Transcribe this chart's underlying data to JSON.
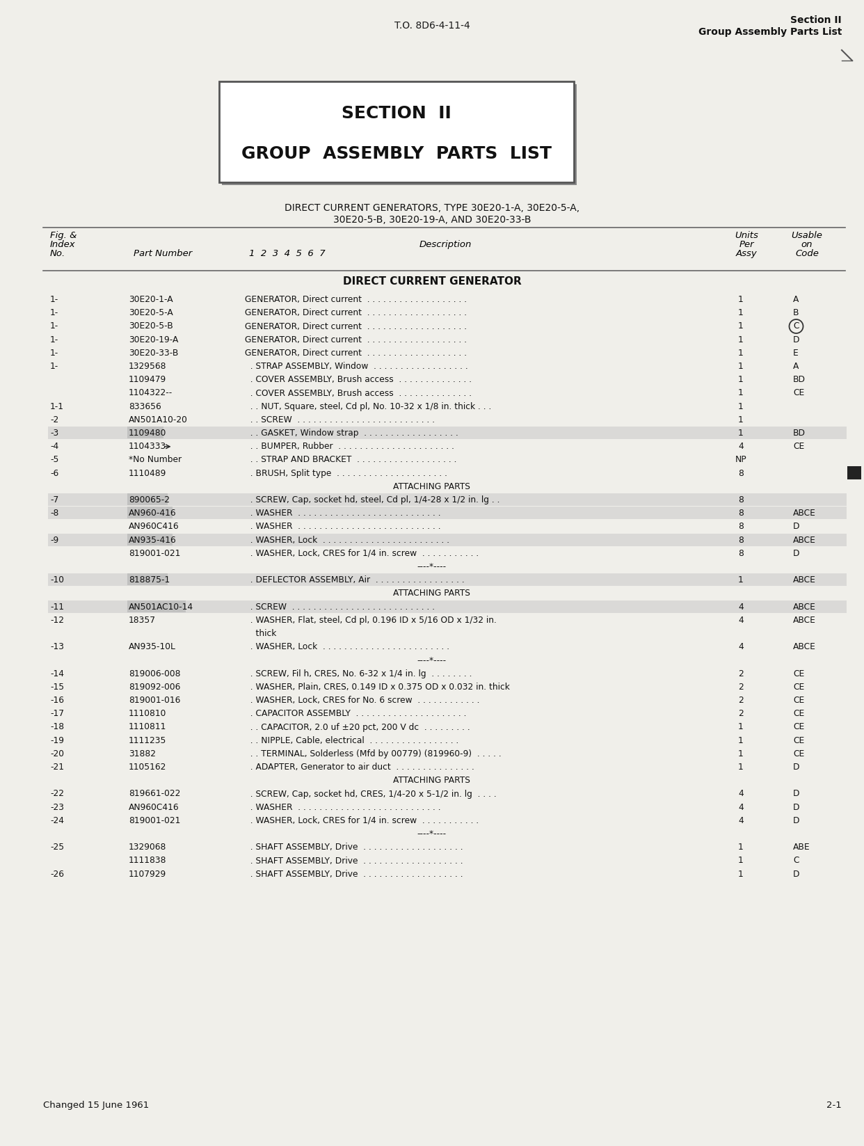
{
  "page_bg": "#f0efea",
  "header_left": "T.O. 8D6-4-11-4",
  "header_right_line1": "Section II",
  "header_right_line2": "Group Assembly Parts List",
  "section_title_line1": "SECTION  II",
  "section_title_line2": "GROUP  ASSEMBLY  PARTS  LIST",
  "subtitle_line1": "DIRECT CURRENT GENERATORS, TYPE 30E20-1-A, 30E20-5-A,",
  "subtitle_line2": "30E20-5-B, 30E20-19-A, AND 30E20-33-B",
  "section_header": "DIRECT CURRENT GENERATOR",
  "rows": [
    {
      "fig": "1-",
      "part": "30E20-1-A",
      "desc": "GENERATOR, Direct current  . . . . . . . . . . . . . . . . . . .",
      "qty": "1",
      "code": "A",
      "circled": false,
      "highlight": false
    },
    {
      "fig": "1-",
      "part": "30E20-5-A",
      "desc": "GENERATOR, Direct current  . . . . . . . . . . . . . . . . . . .",
      "qty": "1",
      "code": "B",
      "circled": false,
      "highlight": false
    },
    {
      "fig": "1-",
      "part": "30E20-5-B",
      "desc": "GENERATOR, Direct current  . . . . . . . . . . . . . . . . . . .",
      "qty": "1",
      "code": "C",
      "circled": true,
      "highlight": false
    },
    {
      "fig": "1-",
      "part": "30E20-19-A",
      "desc": "GENERATOR, Direct current  . . . . . . . . . . . . . . . . . . .",
      "qty": "1",
      "code": "D",
      "circled": false,
      "highlight": false
    },
    {
      "fig": "1-",
      "part": "30E20-33-B",
      "desc": "GENERATOR, Direct current  . . . . . . . . . . . . . . . . . . .",
      "qty": "1",
      "code": "E",
      "circled": false,
      "highlight": false
    },
    {
      "fig": "1-",
      "part": "1329568",
      "desc": "  . STRAP ASSEMBLY, Window  . . . . . . . . . . . . . . . . . .",
      "qty": "1",
      "code": "A",
      "circled": false,
      "highlight": false
    },
    {
      "fig": "",
      "part": "1109479",
      "desc": "  . COVER ASSEMBLY, Brush access  . . . . . . . . . . . . . .",
      "qty": "1",
      "code": "BD",
      "circled": false,
      "highlight": false
    },
    {
      "fig": "",
      "part": "1104322--",
      "desc": "  . COVER ASSEMBLY, Brush access  . . . . . . . . . . . . . .",
      "qty": "1",
      "code": "CE",
      "circled": false,
      "highlight": false
    },
    {
      "fig": "1-1",
      "part": "833656",
      "desc": "  . . NUT, Square, steel, Cd pl, No. 10-32 x 1/8 in. thick . . .",
      "qty": "1",
      "code": "",
      "circled": false,
      "highlight": false
    },
    {
      "fig": "-2",
      "part": "AN501A10-20",
      "desc": "  . . SCREW  . . . . . . . . . . . . . . . . . . . . . . . . . .",
      "qty": "1",
      "code": "",
      "circled": false,
      "highlight": false
    },
    {
      "fig": "-3",
      "part": "1109480",
      "desc": "  . . GASKET, Window strap  . . . . . . . . . . . . . . . . . .",
      "qty": "1",
      "code": "BD",
      "circled": false,
      "highlight": true
    },
    {
      "fig": "-4",
      "part": "1104333",
      "desc": "  . . BUMPER, Rubber  . . . . . . . . . . . . . . . . . . . . . .",
      "qty": "4",
      "code": "CE",
      "circled": false,
      "highlight": false,
      "arrow": true
    },
    {
      "fig": "-5",
      "part": "*No Number",
      "desc": "  . . STRAP AND BRACKET  . . . . . . . . . . . . . . . . . . .",
      "qty": "NP",
      "code": "",
      "circled": false,
      "highlight": false
    },
    {
      "fig": "-6",
      "part": "1110489",
      "desc": "  . BRUSH, Split type  . . . . . . . . . . . . . . . . . . . . .",
      "qty": "8",
      "code": "",
      "circled": false,
      "highlight": false,
      "blackbar": true
    },
    {
      "fig": "",
      "part": "",
      "desc": "ATTACHING PARTS",
      "qty": "",
      "code": "",
      "circled": false,
      "highlight": false,
      "center": true
    },
    {
      "fig": "-7",
      "part": "890065-2",
      "desc": "  . SCREW, Cap, socket hd, steel, Cd pl, 1/4-28 x 1/2 in. lg . .",
      "qty": "8",
      "code": "",
      "circled": false,
      "highlight": true
    },
    {
      "fig": "-8",
      "part": "AN960-416",
      "desc": "  . WASHER  . . . . . . . . . . . . . . . . . . . . . . . . . . .",
      "qty": "8",
      "code": "ABCE",
      "circled": false,
      "highlight": true
    },
    {
      "fig": "",
      "part": "AN960C416",
      "desc": "  . WASHER  . . . . . . . . . . . . . . . . . . . . . . . . . . .",
      "qty": "8",
      "code": "D",
      "circled": false,
      "highlight": false
    },
    {
      "fig": "-9",
      "part": "AN935-416",
      "desc": "  . WASHER, Lock  . . . . . . . . . . . . . . . . . . . . . . . .",
      "qty": "8",
      "code": "ABCE",
      "circled": false,
      "highlight": true
    },
    {
      "fig": "",
      "part": "819001-021",
      "desc": "  . WASHER, Lock, CRES for 1/4 in. screw  . . . . . . . . . . .",
      "qty": "8",
      "code": "D",
      "circled": false,
      "highlight": false
    },
    {
      "fig": "",
      "part": "",
      "desc": "----*----",
      "qty": "",
      "code": "",
      "circled": false,
      "highlight": false,
      "center": true
    },
    {
      "fig": "-10",
      "part": "818875-1",
      "desc": "  . DEFLECTOR ASSEMBLY, Air  . . . . . . . . . . . . . . . . .",
      "qty": "1",
      "code": "ABCE",
      "circled": false,
      "highlight": true
    },
    {
      "fig": "",
      "part": "",
      "desc": "ATTACHING PARTS",
      "qty": "",
      "code": "",
      "circled": false,
      "highlight": false,
      "center": true
    },
    {
      "fig": "-11",
      "part": "AN501AC10-14",
      "desc": "  . SCREW  . . . . . . . . . . . . . . . . . . . . . . . . . . .",
      "qty": "4",
      "code": "ABCE",
      "circled": false,
      "highlight": true
    },
    {
      "fig": "-12",
      "part": "18357",
      "desc": "  . WASHER, Flat, steel, Cd pl, 0.196 ID x 5/16 OD x 1/32 in.",
      "qty": "4",
      "code": "ABCE",
      "circled": false,
      "highlight": false
    },
    {
      "fig": "",
      "part": "",
      "desc": "    thick",
      "qty": "",
      "code": "",
      "circled": false,
      "highlight": false
    },
    {
      "fig": "-13",
      "part": "AN935-10L",
      "desc": "  . WASHER, Lock  . . . . . . . . . . . . . . . . . . . . . . . .",
      "qty": "4",
      "code": "ABCE",
      "circled": false,
      "highlight": false
    },
    {
      "fig": "",
      "part": "",
      "desc": "----*----",
      "qty": "",
      "code": "",
      "circled": false,
      "highlight": false,
      "center": true
    },
    {
      "fig": "-14",
      "part": "819006-008",
      "desc": "  . SCREW, Fil h, CRES, No. 6-32 x 1/4 in. lg  . . . . . . . .",
      "qty": "2",
      "code": "CE",
      "circled": false,
      "highlight": false
    },
    {
      "fig": "-15",
      "part": "819092-006",
      "desc": "  . WASHER, Plain, CRES, 0.149 ID x 0.375 OD x 0.032 in. thick",
      "qty": "2",
      "code": "CE",
      "circled": false,
      "highlight": false
    },
    {
      "fig": "-16",
      "part": "819001-016",
      "desc": "  . WASHER, Lock, CRES for No. 6 screw  . . . . . . . . . . . .",
      "qty": "2",
      "code": "CE",
      "circled": false,
      "highlight": false
    },
    {
      "fig": "-17",
      "part": "1110810",
      "desc": "  . CAPACITOR ASSEMBLY  . . . . . . . . . . . . . . . . . . . . .",
      "qty": "2",
      "code": "CE",
      "circled": false,
      "highlight": false
    },
    {
      "fig": "-18",
      "part": "1110811",
      "desc": "  . . CAPACITOR, 2.0 uf ±20 pct, 200 V dc  . . . . . . . . .",
      "qty": "1",
      "code": "CE",
      "circled": false,
      "highlight": false
    },
    {
      "fig": "-19",
      "part": "1111235",
      "desc": "  . . NIPPLE, Cable, electrical  . . . . . . . . . . . . . . . . .",
      "qty": "1",
      "code": "CE",
      "circled": false,
      "highlight": false
    },
    {
      "fig": "-20",
      "part": "31882",
      "desc": "  . . TERMINAL, Solderless (Mfd by 00779) (819960-9)  . . . . .",
      "qty": "1",
      "code": "CE",
      "circled": false,
      "highlight": false
    },
    {
      "fig": "-21",
      "part": "1105162",
      "desc": "  . ADAPTER, Generator to air duct  . . . . . . . . . . . . . . .",
      "qty": "1",
      "code": "D",
      "circled": false,
      "highlight": false
    },
    {
      "fig": "",
      "part": "",
      "desc": "ATTACHING PARTS",
      "qty": "",
      "code": "",
      "circled": false,
      "highlight": false,
      "center": true
    },
    {
      "fig": "-22",
      "part": "819661-022",
      "desc": "  . SCREW, Cap, socket hd, CRES, 1/4-20 x 5-1/2 in. lg  . . . .",
      "qty": "4",
      "code": "D",
      "circled": false,
      "highlight": false
    },
    {
      "fig": "-23",
      "part": "AN960C416",
      "desc": "  . WASHER  . . . . . . . . . . . . . . . . . . . . . . . . . . .",
      "qty": "4",
      "code": "D",
      "circled": false,
      "highlight": false
    },
    {
      "fig": "-24",
      "part": "819001-021",
      "desc": "  . WASHER, Lock, CRES for 1/4 in. screw  . . . . . . . . . . .",
      "qty": "4",
      "code": "D",
      "circled": false,
      "highlight": false
    },
    {
      "fig": "",
      "part": "",
      "desc": "----*----",
      "qty": "",
      "code": "",
      "circled": false,
      "highlight": false,
      "center": true
    },
    {
      "fig": "-25",
      "part": "1329068",
      "desc": "  . SHAFT ASSEMBLY, Drive  . . . . . . . . . . . . . . . . . . .",
      "qty": "1",
      "code": "ABE",
      "circled": false,
      "highlight": false
    },
    {
      "fig": "",
      "part": "1111838",
      "desc": "  . SHAFT ASSEMBLY, Drive  . . . . . . . . . . . . . . . . . . .",
      "qty": "1",
      "code": "C",
      "circled": false,
      "highlight": false
    },
    {
      "fig": "-26",
      "part": "1107929",
      "desc": "  . SHAFT ASSEMBLY, Drive  . . . . . . . . . . . . . . . . . . .",
      "qty": "1",
      "code": "D",
      "circled": false,
      "highlight": false
    }
  ],
  "footer_left": "Changed 15 June 1961",
  "footer_right": "2-1"
}
